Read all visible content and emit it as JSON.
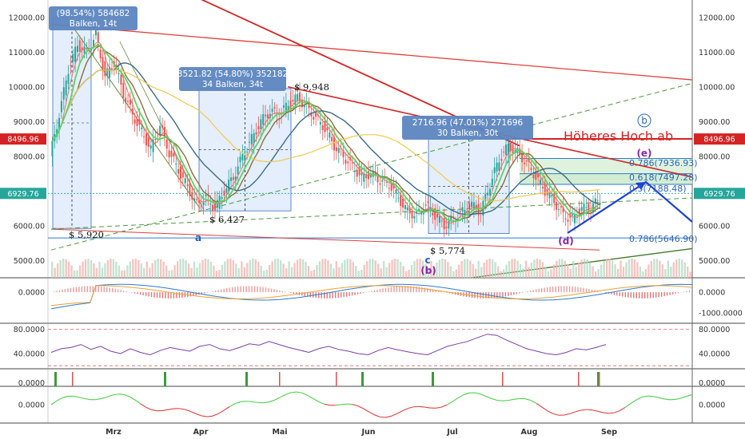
{
  "chart_data": [
    {
      "type": "candlestick",
      "title": "",
      "price_axis": {
        "ylim": [
          4500,
          12500
        ],
        "ticks": [
          5000,
          6000,
          7000,
          8000,
          9000,
          10000,
          11000,
          12000
        ],
        "tick_labels": [
          "5000.00",
          "6000.00",
          "7000.00",
          "8000.00",
          "9000.00",
          "10000.00",
          "11000.00",
          "12000.00"
        ]
      },
      "time_axis": {
        "ticks": [
          "Mrz",
          "Apr",
          "Mai",
          "Jun",
          "Jul",
          "Aug",
          "Sep"
        ]
      },
      "current_price": {
        "value": 6929.76,
        "label": "6929.76"
      },
      "marked_price": {
        "value": 8496.96,
        "label": "8496.96"
      },
      "close_series": [
        8000,
        9200,
        10500,
        11200,
        11000,
        11500,
        10300,
        10700,
        9800,
        9200,
        8700,
        8200,
        8900,
        8100,
        7600,
        7100,
        6600,
        6800,
        6500,
        7000,
        7400,
        8000,
        8500,
        9000,
        9300,
        9200,
        9500,
        9700,
        9400,
        9100,
        8800,
        8300,
        8000,
        7700,
        7400,
        7500,
        7300,
        7200,
        6800,
        6400,
        6300,
        6600,
        6300,
        6000,
        6200,
        6400,
        6600,
        6400,
        7200,
        7900,
        8300,
        8100,
        7800,
        7400,
        7000,
        6700,
        6300,
        6200,
        6500,
        6500,
        6800
      ],
      "measurements": [
        {
          "label": "(98.54%) 584682",
          "sub": "Balken, 14t"
        },
        {
          "label": "3521.82 (54.80%) 352182",
          "sub": "34 Balken, 34t"
        },
        {
          "label": "2716.96 (47.01%) 271696",
          "sub": "30 Balken, 30t"
        }
      ],
      "price_annotations": [
        {
          "text": "$ 5,920",
          "value": 5920
        },
        {
          "text": "$ 6,427",
          "value": 6427
        },
        {
          "text": "$ 5,774",
          "value": 5774
        },
        {
          "text": "$ 9,948",
          "value": 9948
        }
      ],
      "fib_levels": [
        {
          "text": "0.786(7936.93)",
          "value": 7936.93
        },
        {
          "text": "0.618(7497.28)",
          "value": 7497.28
        },
        {
          "text": "0.5(7188.48)",
          "value": 7188.48
        },
        {
          "text": "0.786(5646.90)",
          "value": 5646.9
        }
      ],
      "wave_labels": [
        {
          "text": "b",
          "style": "circled"
        },
        {
          "text": "(e)",
          "style": "purple"
        },
        {
          "text": "(d)",
          "style": "purple"
        },
        {
          "text": "(b)",
          "style": "purple"
        },
        {
          "text": "a",
          "style": "blue"
        },
        {
          "text": "c",
          "style": "blue"
        }
      ],
      "text_annotation": "Höheres Hoch ab"
    },
    {
      "type": "line",
      "name": "MACD",
      "ticks": [
        "0.0000",
        "-1000.0000"
      ],
      "ylim": [
        -1500,
        700
      ]
    },
    {
      "type": "line",
      "name": "RSI",
      "ticks": [
        "80.0000",
        "40.0000"
      ],
      "ylim": [
        15,
        90
      ],
      "values": [
        42,
        48,
        50,
        55,
        47,
        52,
        44,
        40,
        48,
        42,
        38,
        45,
        50,
        47,
        44,
        52,
        55,
        48,
        45,
        50,
        56,
        54,
        60,
        55,
        50,
        46,
        42,
        48,
        52,
        47,
        44,
        40,
        38,
        45,
        50,
        46,
        43,
        40,
        38,
        45,
        52,
        56,
        60,
        66,
        72,
        70,
        62,
        55,
        48,
        44,
        40,
        38,
        42,
        48,
        46,
        50,
        55
      ]
    },
    {
      "type": "bar",
      "name": "Signals",
      "ticks": [
        "0.0000"
      ]
    },
    {
      "type": "line",
      "name": "Oscillator",
      "ticks": [
        "0.0000"
      ],
      "ylim": [
        -1.5,
        1.5
      ]
    }
  ]
}
